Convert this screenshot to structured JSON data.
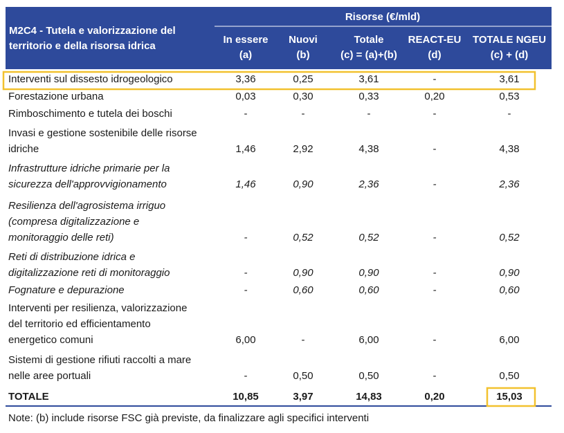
{
  "table": {
    "title": [
      "M2C4 - Tutela e valorizzazione del",
      "territorio e della risorsa idrica"
    ],
    "group_header": "Risorse (€/mld)",
    "columns": [
      [
        "In essere",
        "(a)"
      ],
      [
        "Nuovi",
        "(b)"
      ],
      [
        "Totale",
        "(c) = (a)+(b)"
      ],
      [
        "REACT-EU",
        "(d)"
      ],
      [
        "TOTALE NGEU",
        "(c) + (d)"
      ]
    ],
    "rows": [
      {
        "label": [
          "Interventi sul dissesto idrogeologico"
        ],
        "italic": false,
        "values": [
          "3,36",
          "0,25",
          "3,61",
          "-",
          "3,61"
        ]
      },
      {
        "label": [
          "Forestazione urbana"
        ],
        "italic": false,
        "values": [
          "0,03",
          "0,30",
          "0,33",
          "0,20",
          "0,53"
        ]
      },
      {
        "label": [
          "Rimboschimento e tutela dei boschi"
        ],
        "italic": false,
        "values": [
          "-",
          "-",
          "-",
          "-",
          "-"
        ]
      },
      {
        "label": [
          "Invasi e gestione sostenibile delle risorse",
          "idriche"
        ],
        "italic": false,
        "values": [
          "1,46",
          "2,92",
          "4,38",
          "-",
          "4,38"
        ]
      },
      {
        "label": [
          "Infrastrutture idriche primarie per la",
          "sicurezza dell'approvvigionamento"
        ],
        "italic": true,
        "values": [
          "1,46",
          "0,90",
          "2,36",
          "-",
          "2,36"
        ]
      },
      {
        "label": [
          "Resilienza dell'agrosistema irriguo",
          "(compresa digitalizzazione e",
          "monitoraggio delle reti)"
        ],
        "italic": true,
        "values": [
          "-",
          "0,52",
          "0,52",
          "-",
          "0,52"
        ]
      },
      {
        "label": [
          "Reti di distribuzione idrica e",
          "digitalizzazione reti di monitoraggio"
        ],
        "italic": true,
        "values": [
          "-",
          "0,90",
          "0,90",
          "-",
          "0,90"
        ]
      },
      {
        "label": [
          "Fognature e depurazione"
        ],
        "italic": true,
        "values": [
          "-",
          "0,60",
          "0,60",
          "-",
          "0,60"
        ]
      },
      {
        "label": [
          "Interventi per resilienza, valorizzazione",
          "del territorio ed efficientamento",
          "energetico comuni"
        ],
        "italic": false,
        "values": [
          "6,00",
          "-",
          "6,00",
          "-",
          "6,00"
        ]
      },
      {
        "label": [
          "Sistemi di gestione rifiuti raccolti a mare",
          "nelle aree portuali"
        ],
        "italic": false,
        "values": [
          "-",
          "0,50",
          "0,50",
          "-",
          "0,50"
        ]
      }
    ],
    "total": {
      "label": "TOTALE",
      "values": [
        "10,85",
        "3,97",
        "14,83",
        "0,20",
        "15,03"
      ]
    },
    "note": "Note: (b) include risorse FSC già previste, da finalizzare agli specifici interventi"
  }
}
